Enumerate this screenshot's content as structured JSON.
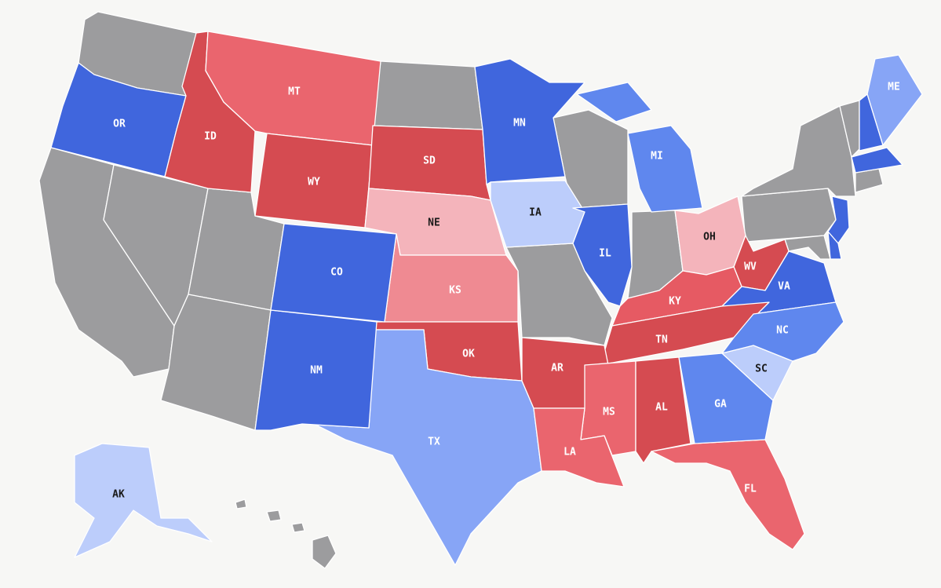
{
  "no_rating_color": "#9c9c9e",
  "states": [
    {
      "label": "OR",
      "color": "#4066dd"
    },
    {
      "label": "ID",
      "color": "#d54b51"
    },
    {
      "label": "MT",
      "color": "#ea656e"
    },
    {
      "label": "WY",
      "color": "#d54b51"
    },
    {
      "label": "SD",
      "color": "#d54b51"
    },
    {
      "label": "NE",
      "color": "#f4b4bb"
    },
    {
      "label": "KS",
      "color": "#ef8a92"
    },
    {
      "label": "OK",
      "color": "#d54b51"
    },
    {
      "label": "TX",
      "color": "#87a5f6"
    },
    {
      "label": "NM",
      "color": "#4066dd"
    },
    {
      "label": "CO",
      "color": "#4066dd"
    },
    {
      "label": "MN",
      "color": "#4066dd"
    },
    {
      "label": "IA",
      "color": "#bccdfb"
    },
    {
      "label": "IL",
      "color": "#4066dd"
    },
    {
      "label": "MI",
      "color": "#5f87ee"
    },
    {
      "label": "OH",
      "color": "#f4b4bb"
    },
    {
      "label": "WV",
      "color": "#d54b51"
    },
    {
      "label": "VA",
      "color": "#4066dd"
    },
    {
      "label": "KY",
      "color": "#e65a63"
    },
    {
      "label": "TN",
      "color": "#d54b51"
    },
    {
      "label": "AR",
      "color": "#d54b51"
    },
    {
      "label": "MS",
      "color": "#ea656e"
    },
    {
      "label": "AL",
      "color": "#d54b51"
    },
    {
      "label": "LA",
      "color": "#ea656e"
    },
    {
      "label": "FL",
      "color": "#ea656e"
    },
    {
      "label": "GA",
      "color": "#5f87ee"
    },
    {
      "label": "SC",
      "color": "#bccdfb"
    },
    {
      "label": "NC",
      "color": "#5f87ee"
    },
    {
      "label": "ME",
      "color": "#87a5f6"
    },
    {
      "label": "AK",
      "color": "#bccdfb"
    },
    {
      "color": "#4066dd"
    },
    {
      "color": "#4066dd"
    },
    {
      "color": "#4066dd"
    },
    {
      "color": "#4066dd"
    }
  ]
}
